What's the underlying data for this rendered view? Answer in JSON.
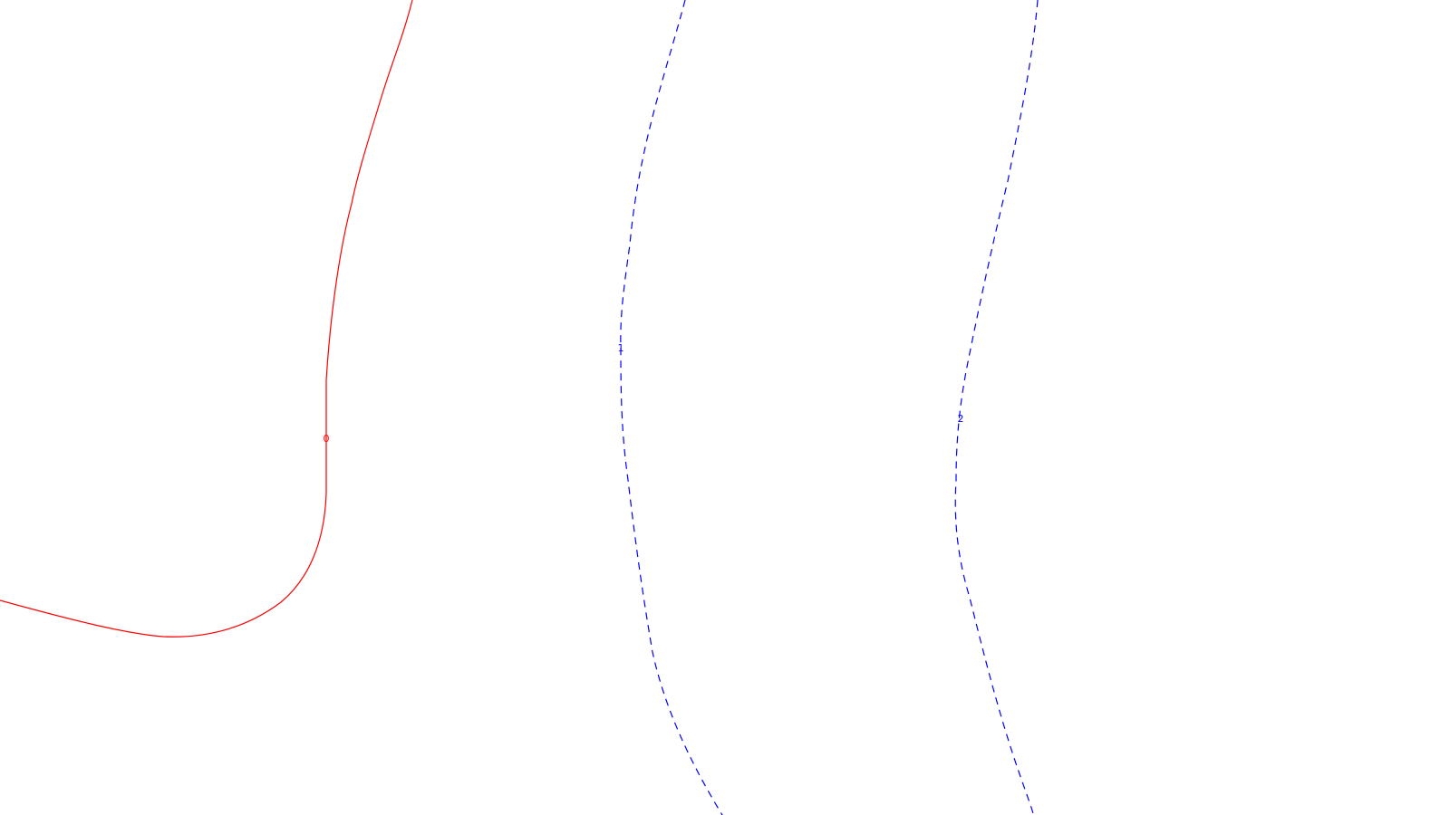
{
  "colors": {
    "background": "#ffffff",
    "contour_0": "#ff0000",
    "contour_1": "#0000ff",
    "contour_2": "#0000ff"
  },
  "contours": [
    {
      "id": "contour-0",
      "label": "0",
      "color": "#ff0000",
      "style": "solid"
    },
    {
      "id": "contour-1",
      "label": "1",
      "color": "#0000ff",
      "style": "dashed"
    },
    {
      "id": "contour-2",
      "label": "2",
      "color": "#0000ff",
      "style": "dashed"
    }
  ]
}
